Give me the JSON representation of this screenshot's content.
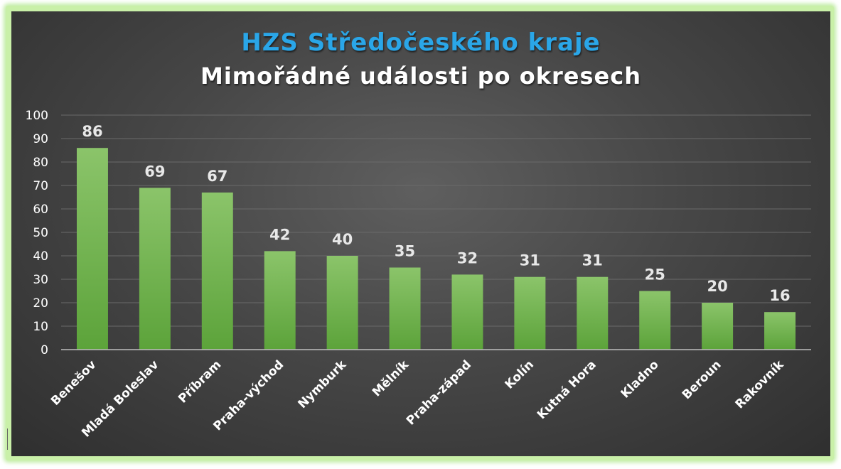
{
  "colors": {
    "title": "#2aa6e8",
    "bar_top": "#8bc46a",
    "bar_bottom": "#5ca33a",
    "grid": "#6a6a6a",
    "axis": "#bdbdbd"
  },
  "chart_data": {
    "type": "bar",
    "title": "HZS Středočeského kraje",
    "subtitle": "Mimořádné události po okresech",
    "categories": [
      "Benešov",
      "Mladá Boleslav",
      "Příbram",
      "Praha-východ",
      "Nymburk",
      "Mělník",
      "Praha-západ",
      "Kolín",
      "Kutná Hora",
      "Kladno",
      "Beroun",
      "Rakovník"
    ],
    "values": [
      86,
      69,
      67,
      42,
      40,
      35,
      32,
      31,
      31,
      25,
      20,
      16
    ],
    "ylim": [
      0,
      100
    ],
    "yticks": [
      0,
      10,
      20,
      30,
      40,
      50,
      60,
      70,
      80,
      90,
      100
    ],
    "grid": true,
    "data_labels": true,
    "legend": "none"
  }
}
